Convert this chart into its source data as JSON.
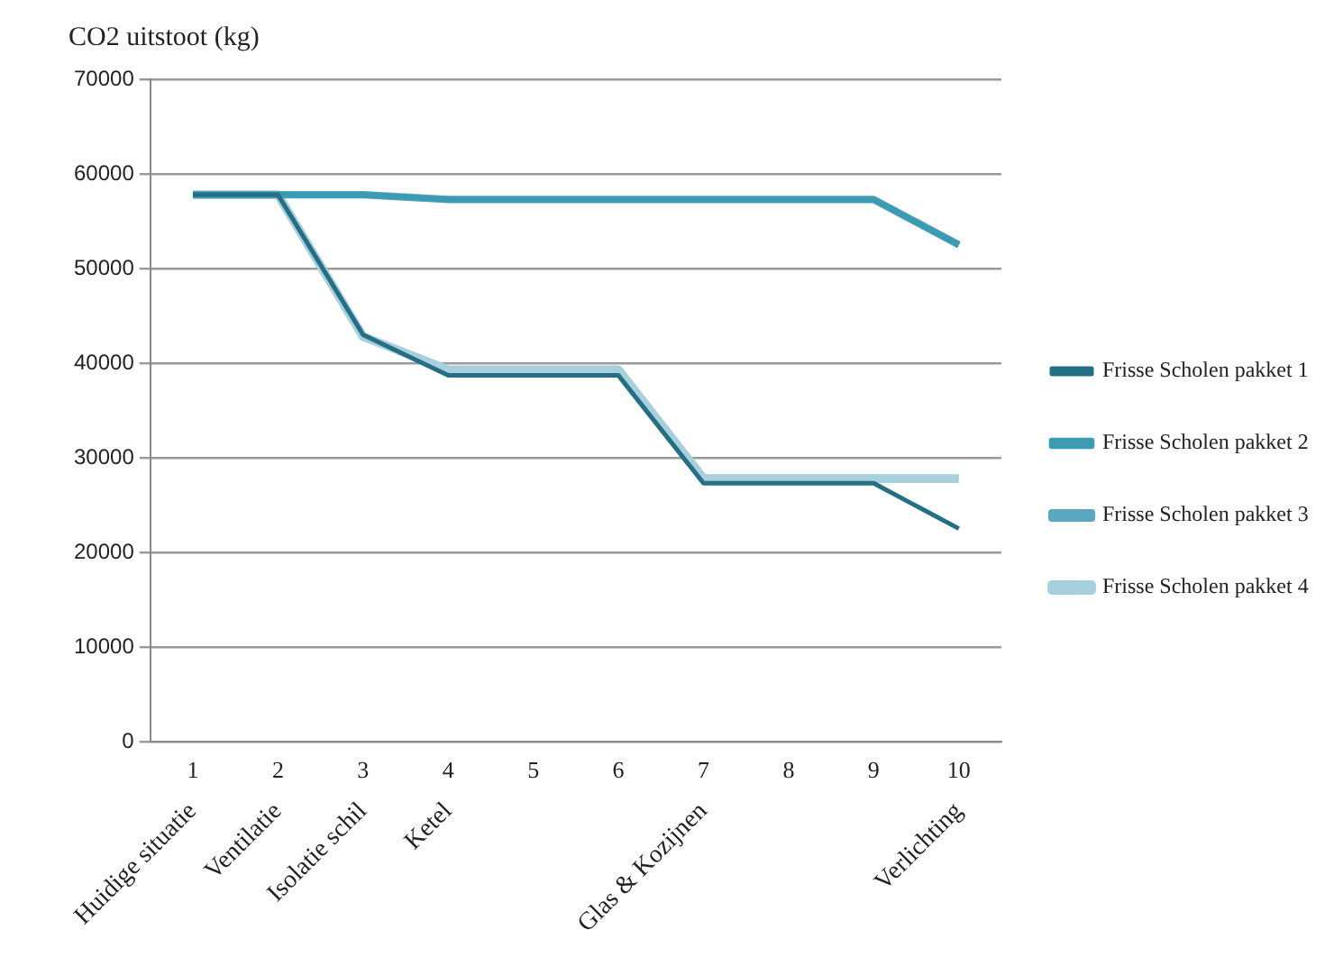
{
  "chart_data": {
    "type": "line",
    "ylabel": "CO2 uitstoot (kg)",
    "categories": [
      "Huidige situatie",
      "Ventilatie",
      "Isolatie schil",
      "Ketel",
      null,
      null,
      "Glas & Kozijnen",
      null,
      null,
      "Verlichting"
    ],
    "x2lim": [
      0.5,
      10.5
    ],
    "x2ticks": [
      1,
      2,
      3,
      4,
      5,
      6,
      7,
      8,
      9,
      10
    ],
    "series": [
      {
        "name": "Frisse Scholen pakket 1",
        "color": "#246f85",
        "values": [
          57800,
          57800,
          43000,
          38700,
          38700,
          38700,
          27300,
          27300,
          27300,
          22500
        ]
      },
      {
        "name": "Frisse Scholen pakket 2",
        "color": "#3a9bb3",
        "values": [
          57800,
          57800,
          57800,
          57300,
          57300,
          57300,
          57300,
          57300,
          57300,
          52500
        ]
      },
      {
        "name": "Frisse Scholen pakket 3",
        "color": "#5aa8c0",
        "values": [
          57800,
          57800,
          57800,
          57300,
          57300,
          57300,
          57300,
          57300,
          57300,
          52500
        ]
      },
      {
        "name": "Frisse Scholen pakket 4",
        "color": "#a8d0dc",
        "values": [
          57800,
          57800,
          42800,
          39300,
          39300,
          39300,
          27800,
          27800,
          27800,
          27800
        ]
      }
    ],
    "ylim": [
      0,
      70000
    ],
    "yticks": [
      0,
      10000,
      20000,
      30000,
      40000,
      50000,
      60000,
      70000
    ],
    "grid": "y",
    "legend": "right",
    "marker": "none",
    "line_style": "solid"
  }
}
